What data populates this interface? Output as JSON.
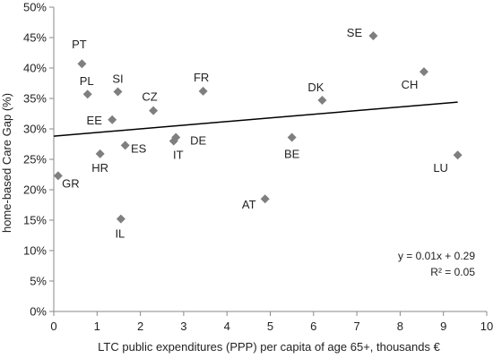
{
  "chart_data": {
    "type": "scatter",
    "title": "",
    "xlabel": "LTC public expenditures (PPP) per capita of age 65+, thousands €",
    "ylabel": "home-based Care Gap (%)",
    "xlim": [
      0,
      10
    ],
    "ylim": [
      0,
      50
    ],
    "x_ticks": [
      0,
      1,
      2,
      3,
      4,
      5,
      6,
      7,
      8,
      9,
      10
    ],
    "y_ticks": [
      0,
      5,
      10,
      15,
      20,
      25,
      30,
      35,
      40,
      45,
      50
    ],
    "y_tick_format": "percent",
    "grid": false,
    "marker": "diamond",
    "colors": {
      "marker": "#7f7f7f",
      "trendline": "#000000",
      "axis": "#888888"
    },
    "points": [
      {
        "label": "PT",
        "x": 0.65,
        "y": 40.7
      },
      {
        "label": "PL",
        "x": 0.78,
        "y": 35.7
      },
      {
        "label": "SI",
        "x": 1.48,
        "y": 36.1
      },
      {
        "label": "EE",
        "x": 1.35,
        "y": 31.5
      },
      {
        "label": "HR",
        "x": 1.07,
        "y": 25.9
      },
      {
        "label": "ES",
        "x": 1.65,
        "y": 27.3
      },
      {
        "label": "CZ",
        "x": 2.3,
        "y": 33.0
      },
      {
        "label": "FR",
        "x": 3.45,
        "y": 36.2
      },
      {
        "label": "DE",
        "x": 2.82,
        "y": 28.6
      },
      {
        "label": "IT",
        "x": 2.77,
        "y": 28.0
      },
      {
        "label": "GR",
        "x": 0.1,
        "y": 22.3
      },
      {
        "label": "IL",
        "x": 1.55,
        "y": 15.2
      },
      {
        "label": "AT",
        "x": 4.88,
        "y": 18.5
      },
      {
        "label": "BE",
        "x": 5.5,
        "y": 28.6
      },
      {
        "label": "DK",
        "x": 6.2,
        "y": 34.7
      },
      {
        "label": "SE",
        "x": 7.38,
        "y": 45.3
      },
      {
        "label": "CH",
        "x": 8.55,
        "y": 39.4
      },
      {
        "label": "LU",
        "x": 9.33,
        "y": 25.7
      }
    ],
    "trendline": {
      "x": [
        0,
        9.33
      ],
      "y": [
        28.8,
        34.4
      ],
      "equation": "y = 0.01x + 0.29",
      "r_squared": "R² = 0.05"
    }
  }
}
